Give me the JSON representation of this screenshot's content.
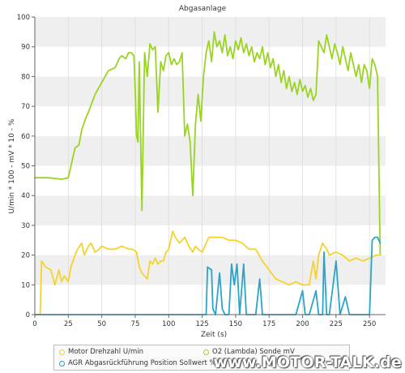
{
  "chart_data": {
    "type": "line",
    "title": "Abgasanlage",
    "xlabel": "Zeit (s)",
    "ylabel": "U/min * 100 - mV * 10 - %",
    "xlim": [
      0,
      262
    ],
    "ylim": [
      0,
      100
    ],
    "x_ticks": [
      0,
      25,
      50,
      75,
      100,
      125,
      150,
      175,
      200,
      225,
      250
    ],
    "y_ticks": [
      0,
      10,
      20,
      30,
      40,
      50,
      60,
      70,
      80,
      90,
      100
    ],
    "grid": "alternating horizontal bands",
    "legend_position": "bottom",
    "series": [
      {
        "name": "Motor Drehzahl U/min",
        "color": "#f5d22e",
        "points": [
          [
            0,
            0
          ],
          [
            4,
            0
          ],
          [
            5,
            18
          ],
          [
            8,
            16
          ],
          [
            12,
            15
          ],
          [
            15,
            10
          ],
          [
            18,
            15
          ],
          [
            20,
            11
          ],
          [
            22,
            13
          ],
          [
            25,
            11
          ],
          [
            27,
            16
          ],
          [
            30,
            20
          ],
          [
            32,
            22
          ],
          [
            35,
            24
          ],
          [
            37,
            20
          ],
          [
            40,
            23
          ],
          [
            42,
            24
          ],
          [
            45,
            21
          ],
          [
            48,
            22
          ],
          [
            50,
            23
          ],
          [
            55,
            22
          ],
          [
            60,
            22
          ],
          [
            65,
            23
          ],
          [
            70,
            22
          ],
          [
            73,
            22
          ],
          [
            76,
            21
          ],
          [
            78,
            16
          ],
          [
            80,
            14
          ],
          [
            82,
            13
          ],
          [
            84,
            12
          ],
          [
            86,
            18
          ],
          [
            88,
            17
          ],
          [
            90,
            19
          ],
          [
            92,
            17
          ],
          [
            94,
            18
          ],
          [
            96,
            18
          ],
          [
            98,
            21
          ],
          [
            100,
            22
          ],
          [
            103,
            28
          ],
          [
            105,
            26
          ],
          [
            108,
            24
          ],
          [
            112,
            26
          ],
          [
            115,
            23
          ],
          [
            118,
            21
          ],
          [
            120,
            23
          ],
          [
            122,
            22
          ],
          [
            125,
            21
          ],
          [
            130,
            26
          ],
          [
            135,
            26
          ],
          [
            140,
            26
          ],
          [
            145,
            25
          ],
          [
            150,
            25
          ],
          [
            155,
            24
          ],
          [
            160,
            22
          ],
          [
            165,
            22
          ],
          [
            170,
            18
          ],
          [
            175,
            15
          ],
          [
            180,
            12
          ],
          [
            185,
            11
          ],
          [
            190,
            10
          ],
          [
            195,
            11
          ],
          [
            200,
            10
          ],
          [
            205,
            10
          ],
          [
            208,
            18
          ],
          [
            210,
            12
          ],
          [
            212,
            20
          ],
          [
            215,
            24
          ],
          [
            218,
            22
          ],
          [
            220,
            20
          ],
          [
            225,
            21
          ],
          [
            230,
            20
          ],
          [
            235,
            18
          ],
          [
            240,
            19
          ],
          [
            245,
            18
          ],
          [
            250,
            19
          ],
          [
            255,
            20
          ],
          [
            258,
            20
          ]
        ]
      },
      {
        "name": "O2 (Lambda) Sonde mV",
        "color": "#9ad423",
        "points": [
          [
            0,
            46
          ],
          [
            10,
            46
          ],
          [
            20,
            45.5
          ],
          [
            25,
            46
          ],
          [
            28,
            52
          ],
          [
            30,
            56
          ],
          [
            33,
            57
          ],
          [
            35,
            62
          ],
          [
            38,
            66
          ],
          [
            40,
            68
          ],
          [
            45,
            74
          ],
          [
            50,
            78
          ],
          [
            55,
            82
          ],
          [
            60,
            83
          ],
          [
            63,
            86
          ],
          [
            65,
            87
          ],
          [
            68,
            86
          ],
          [
            70,
            88
          ],
          [
            72,
            88
          ],
          [
            74,
            87
          ],
          [
            75,
            75
          ],
          [
            76,
            60
          ],
          [
            77,
            58
          ],
          [
            78,
            85
          ],
          [
            80,
            35
          ],
          [
            82,
            88
          ],
          [
            84,
            80
          ],
          [
            86,
            91
          ],
          [
            88,
            89
          ],
          [
            90,
            90
          ],
          [
            92,
            68
          ],
          [
            94,
            85
          ],
          [
            96,
            82
          ],
          [
            98,
            87
          ],
          [
            100,
            88
          ],
          [
            102,
            84
          ],
          [
            104,
            86
          ],
          [
            106,
            84
          ],
          [
            108,
            85
          ],
          [
            110,
            88
          ],
          [
            112,
            60
          ],
          [
            114,
            64
          ],
          [
            116,
            58
          ],
          [
            118,
            40
          ],
          [
            120,
            64
          ],
          [
            122,
            74
          ],
          [
            124,
            65
          ],
          [
            126,
            80
          ],
          [
            128,
            88
          ],
          [
            130,
            92
          ],
          [
            132,
            85
          ],
          [
            134,
            95
          ],
          [
            136,
            90
          ],
          [
            138,
            92
          ],
          [
            140,
            88
          ],
          [
            142,
            94
          ],
          [
            144,
            87
          ],
          [
            146,
            90
          ],
          [
            148,
            86
          ],
          [
            150,
            92
          ],
          [
            152,
            89
          ],
          [
            154,
            93
          ],
          [
            156,
            88
          ],
          [
            158,
            91
          ],
          [
            160,
            87
          ],
          [
            162,
            90
          ],
          [
            164,
            85
          ],
          [
            166,
            88
          ],
          [
            168,
            86
          ],
          [
            170,
            90
          ],
          [
            172,
            84
          ],
          [
            174,
            88
          ],
          [
            176,
            83
          ],
          [
            178,
            86
          ],
          [
            180,
            80
          ],
          [
            182,
            84
          ],
          [
            184,
            78
          ],
          [
            186,
            82
          ],
          [
            188,
            76
          ],
          [
            190,
            80
          ],
          [
            192,
            75
          ],
          [
            194,
            78
          ],
          [
            196,
            74
          ],
          [
            198,
            79
          ],
          [
            200,
            75
          ],
          [
            202,
            77
          ],
          [
            204,
            73
          ],
          [
            206,
            76
          ],
          [
            208,
            72
          ],
          [
            210,
            74
          ],
          [
            212,
            92
          ],
          [
            214,
            90
          ],
          [
            216,
            88
          ],
          [
            218,
            94
          ],
          [
            220,
            90
          ],
          [
            222,
            86
          ],
          [
            224,
            91
          ],
          [
            226,
            88
          ],
          [
            228,
            84
          ],
          [
            230,
            90
          ],
          [
            232,
            86
          ],
          [
            234,
            82
          ],
          [
            236,
            88
          ],
          [
            238,
            84
          ],
          [
            240,
            80
          ],
          [
            242,
            84
          ],
          [
            244,
            78
          ],
          [
            246,
            84
          ],
          [
            248,
            82
          ],
          [
            250,
            76
          ],
          [
            252,
            86
          ],
          [
            254,
            84
          ],
          [
            256,
            80
          ],
          [
            258,
            20
          ]
        ]
      },
      {
        "name": "AGR Abgasrückführung Position Sollwert  %",
        "color": "#2aa5c9",
        "points": [
          [
            0,
            0
          ],
          [
            128,
            0
          ],
          [
            129,
            16
          ],
          [
            132,
            15
          ],
          [
            133,
            2
          ],
          [
            135,
            0
          ],
          [
            138,
            14
          ],
          [
            140,
            2
          ],
          [
            142,
            0
          ],
          [
            145,
            0
          ],
          [
            147,
            17
          ],
          [
            149,
            10
          ],
          [
            151,
            17
          ],
          [
            153,
            0
          ],
          [
            156,
            17
          ],
          [
            158,
            0
          ],
          [
            165,
            0
          ],
          [
            168,
            12
          ],
          [
            170,
            0
          ],
          [
            175,
            0
          ],
          [
            190,
            0
          ],
          [
            195,
            0
          ],
          [
            200,
            8
          ],
          [
            202,
            0
          ],
          [
            205,
            0
          ],
          [
            210,
            8
          ],
          [
            212,
            0
          ],
          [
            215,
            0
          ],
          [
            216,
            21
          ],
          [
            218,
            0
          ],
          [
            220,
            0
          ],
          [
            225,
            18
          ],
          [
            228,
            0
          ],
          [
            232,
            6
          ],
          [
            235,
            0
          ],
          [
            240,
            0
          ],
          [
            245,
            0
          ],
          [
            250,
            0
          ],
          [
            252,
            25
          ],
          [
            254,
            26
          ],
          [
            256,
            26
          ],
          [
            258,
            24
          ]
        ]
      }
    ]
  },
  "legend": [
    {
      "label": "Motor Drehzahl U/min",
      "color": "#f5d22e"
    },
    {
      "label": "O2 (Lambda) Sonde mV",
      "color": "#9ad423"
    },
    {
      "label": "AGR Abgasrückführung Position Sollwert  %",
      "color": "#2aa5c9"
    }
  ],
  "watermark": "www.MOTOR-TALK.de"
}
